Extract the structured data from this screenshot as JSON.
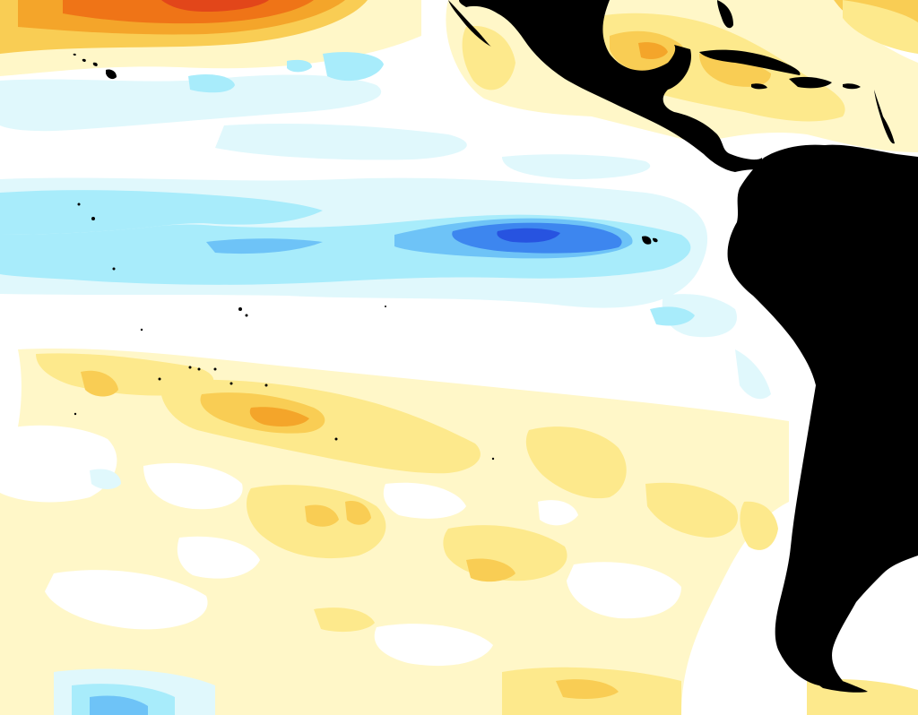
{
  "map": {
    "type": "sea-surface-temperature-anomaly",
    "region": "Eastern Pacific",
    "legend_visible": false,
    "title": "",
    "palette": {
      "ocean": "#ffffff",
      "land": "#000000",
      "warm_1": "#fff7c8",
      "warm_2": "#fde98c",
      "warm_3": "#f9cd54",
      "warm_4": "#f4a52a",
      "warm_5": "#ef7417",
      "warm_6": "#e2461a",
      "cool_1": "#e0f8fc",
      "cool_2": "#a8ecfb",
      "cool_3": "#6ec3f7",
      "cool_4": "#3d86ef",
      "cool_5": "#2753e0"
    },
    "features": [
      {
        "name": "warm-anomaly-north-pacific",
        "level": "warm_6"
      },
      {
        "name": "cool-band-equatorial",
        "level": "cool_2"
      },
      {
        "name": "cool-anomaly-core-galapagos",
        "level": "cool_5"
      },
      {
        "name": "warm-band-south-pacific",
        "level": "warm_3"
      },
      {
        "name": "warm-patches-gulf-of-mexico",
        "level": "warm_3"
      },
      {
        "name": "cool-patch-south-west",
        "level": "cool_3"
      }
    ],
    "landmasses": [
      "north-america",
      "central-america",
      "caribbean-islands",
      "south-america",
      "hawaii",
      "galapagos",
      "south-pacific-islands"
    ]
  }
}
